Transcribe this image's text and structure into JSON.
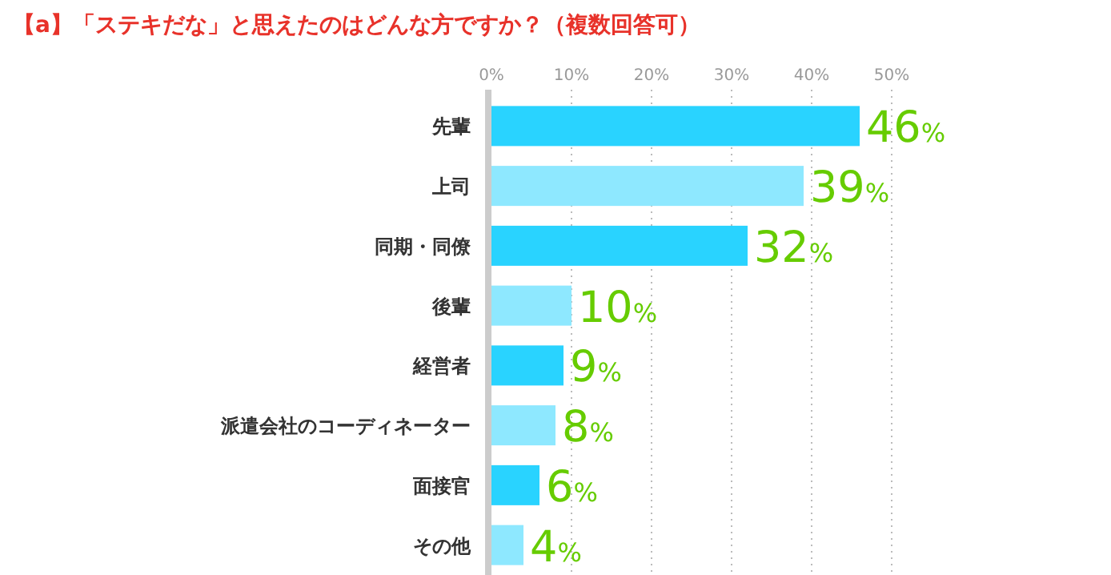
{
  "chart_data": {
    "type": "bar",
    "orientation": "horizontal",
    "title": "【a】「ステキだな」と思えたのはどんな方ですか？（複数回答可）",
    "categories": [
      "先輩",
      "上司",
      "同期・同僚",
      "後輩",
      "経営者",
      "派遣会社のコーディネーター",
      "面接官",
      "その他"
    ],
    "values": [
      46,
      39,
      32,
      10,
      9,
      8,
      6,
      4
    ],
    "colors": [
      "#29d3ff",
      "#8ee8ff",
      "#29d3ff",
      "#8ee8ff",
      "#29d3ff",
      "#8ee8ff",
      "#29d3ff",
      "#8ee8ff"
    ],
    "value_labels": [
      "46%",
      "39%",
      "32%",
      "10%",
      "9%",
      "8%",
      "6%",
      "4%"
    ],
    "xlim": [
      0,
      50
    ],
    "xticks": [
      {
        "value": 0,
        "label": "0%"
      },
      {
        "value": 10,
        "label": "10%"
      },
      {
        "value": 20,
        "label": "20%"
      },
      {
        "value": 30,
        "label": "30%"
      },
      {
        "value": 40,
        "label": "40%"
      },
      {
        "value": 50,
        "label": "50%"
      }
    ],
    "grid": "x"
  }
}
